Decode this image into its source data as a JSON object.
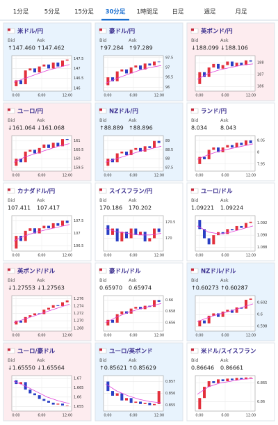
{
  "tabs": {
    "items": [
      "1分足",
      "5分足",
      "15分足",
      "30分足",
      "1時間足",
      "日足",
      "週足",
      "月足"
    ],
    "active": 3
  },
  "bid_label": "Bid",
  "ask_label": "Ask",
  "chart_x_labels": [
    "0:00",
    "6:00",
    "12:00"
  ],
  "tiles": [
    {
      "name": "米ドル/円",
      "trend": "up",
      "bid": "↑147.460",
      "ask": "↑147.462",
      "chart": {
        "ylim": [
          145.85,
          147.65
        ],
        "yticks": [
          147.5,
          147,
          146.5,
          146
        ],
        "open": 146.1,
        "closes": [
          146.4,
          146.2,
          146.9,
          147.0,
          146.8,
          147.1,
          147.2,
          147.0,
          147.3,
          147.1,
          147.4,
          147.45
        ],
        "ma": [
          146.3,
          146.5,
          146.7,
          146.9,
          147.05,
          147.2
        ]
      }
    },
    {
      "name": "豪ドル/円",
      "trend": "up",
      "bid": "↑97.284",
      "ask": "↑97.289",
      "chart": {
        "ylim": [
          95.8,
          97.6
        ],
        "yticks": [
          97.5,
          97,
          96.5,
          96
        ],
        "open": 96.1,
        "closes": [
          96.5,
          96.3,
          96.8,
          96.9,
          96.7,
          97.0,
          97.1,
          96.9,
          97.2,
          97.1,
          97.3,
          97.28
        ],
        "ma": [
          96.2,
          96.45,
          96.65,
          96.85,
          97.0,
          97.1
        ]
      }
    },
    {
      "name": "英ポンド/円",
      "trend": "down",
      "bid": "↓188.099",
      "ask": "↓188.106",
      "chart": {
        "ylim": [
          185.6,
          188.6
        ],
        "yticks": [
          188,
          187,
          186
        ],
        "open": 186.2,
        "closes": [
          187.2,
          186.8,
          187.6,
          187.9,
          187.5,
          187.8,
          188.1,
          187.7,
          188.0,
          187.8,
          188.2,
          188.1
        ],
        "ma": [
          186.6,
          187.1,
          187.4,
          187.6,
          187.8,
          187.9
        ]
      }
    },
    {
      "name": "ユーロ/円",
      "trend": "down",
      "bid": "↓161.064",
      "ask": "↓161.068",
      "chart": {
        "ylim": [
          159.3,
          161.3
        ],
        "yticks": [
          161,
          160.5,
          160,
          159.5
        ],
        "open": 159.6,
        "closes": [
          160.0,
          159.8,
          160.4,
          160.5,
          160.3,
          160.6,
          160.8,
          160.6,
          160.9,
          160.7,
          161.1,
          161.06
        ],
        "ma": [
          159.8,
          160.1,
          160.3,
          160.5,
          160.7,
          160.85
        ]
      }
    },
    {
      "name": "NZドル/円",
      "trend": "up",
      "bid": "↑88.889",
      "ask": "↑88.896",
      "chart": {
        "ylim": [
          87.3,
          89.3
        ],
        "yticks": [
          89,
          88.5,
          88,
          87.5
        ],
        "open": 87.6,
        "closes": [
          88.0,
          87.8,
          88.3,
          88.4,
          88.2,
          88.5,
          88.6,
          88.4,
          88.7,
          88.6,
          89.0,
          88.89
        ],
        "ma": [
          87.8,
          88.0,
          88.2,
          88.4,
          88.55,
          88.7
        ]
      }
    },
    {
      "name": "ランド/円",
      "trend": "none",
      "bid": "8.034",
      "ask": "8.043",
      "chart": {
        "ylim": [
          7.92,
          8.07
        ],
        "yticks": [
          8.05,
          8,
          7.95
        ],
        "open": 7.95,
        "closes": [
          7.98,
          7.97,
          8.01,
          8.02,
          8.0,
          8.02,
          8.03,
          8.02,
          8.04,
          8.03,
          8.05,
          8.038
        ],
        "ma": [
          7.97,
          7.99,
          8.005,
          8.015,
          8.025,
          8.035
        ]
      }
    },
    {
      "name": "カナダドル/円",
      "trend": "none",
      "bid": "107.411",
      "ask": "107.417",
      "chart": {
        "ylim": [
          106.3,
          107.7
        ],
        "yticks": [
          107.5,
          107,
          106.5
        ],
        "open": 106.4,
        "closes": [
          106.9,
          106.7,
          107.1,
          107.2,
          107.0,
          107.2,
          107.3,
          107.2,
          107.4,
          107.3,
          107.5,
          107.41
        ],
        "ma": [
          106.7,
          106.9,
          107.05,
          107.15,
          107.25,
          107.35
        ]
      }
    },
    {
      "name": "スイスフラン/円",
      "trend": "none",
      "bid": "170.186",
      "ask": "170.202",
      "chart": {
        "ylim": [
          169.6,
          170.7
        ],
        "yticks": [
          170.5,
          170
        ],
        "open": 170.4,
        "closes": [
          170.1,
          170.3,
          169.9,
          170.2,
          170.0,
          170.3,
          170.1,
          170.2,
          169.9,
          170.0,
          170.3,
          170.19
        ],
        "ma": [
          170.3,
          170.2,
          170.15,
          170.1,
          170.1,
          170.15
        ]
      }
    },
    {
      "name": "ユーロ/ドル",
      "trend": "none",
      "bid": "1.09221",
      "ask": "1.09224",
      "chart": {
        "ylim": [
          1.0874,
          1.0932
        ],
        "yticks": [
          1.092,
          {
            "value": 1.09,
            "label": "1.090"
          },
          1.088
        ],
        "open": 1.0925,
        "closes": [
          1.091,
          1.0895,
          1.0885,
          1.09,
          1.0905,
          1.0902,
          1.091,
          1.0908,
          1.0915,
          1.0912,
          1.092,
          1.0922
        ],
        "ma": [
          1.0915,
          1.0905,
          1.0902,
          1.0905,
          1.091,
          1.0915
        ]
      }
    },
    {
      "name": "英ポンド/ドル",
      "trend": "down",
      "bid": "↓1.27553",
      "ask": "↓1.27563",
      "chart": {
        "ylim": [
          1.2672,
          1.2768
        ],
        "yticks": [
          1.276,
          1.274,
          1.272,
          {
            "value": 1.27,
            "label": "1.270"
          },
          1.268
        ],
        "open": 1.269,
        "closes": [
          1.27,
          1.2695,
          1.271,
          1.2715,
          1.272,
          1.2718,
          1.273,
          1.2735,
          1.2742,
          1.274,
          1.275,
          1.2755
        ],
        "ma": [
          1.2695,
          1.2705,
          1.2715,
          1.2725,
          1.2735,
          1.2745
        ]
      }
    },
    {
      "name": "豪ドル/ドル",
      "trend": "none",
      "bid": "0.65970",
      "ask": "0.65974",
      "chart": {
        "ylim": [
          0.6545,
          0.6608
        ],
        "yticks": [
          0.66,
          0.658,
          0.656
        ],
        "open": 0.6555,
        "closes": [
          0.6565,
          0.656,
          0.6575,
          0.658,
          0.6576,
          0.6585,
          0.6588,
          0.6584,
          0.659,
          0.6588,
          0.66,
          0.6597
        ],
        "ma": [
          0.656,
          0.657,
          0.6578,
          0.6584,
          0.6589,
          0.6594
        ]
      }
    },
    {
      "name": "NZドル/ドル",
      "trend": "up",
      "bid": "↑0.60273",
      "ask": "↑0.60287",
      "chart": {
        "ylim": [
          0.5972,
          0.6032
        ],
        "yticks": [
          0.602,
          0.6,
          0.598
        ],
        "open": 0.598,
        "closes": [
          0.599,
          0.5985,
          0.5998,
          0.6002,
          0.5996,
          0.6005,
          0.6008,
          0.6003,
          0.6012,
          0.601,
          0.6025,
          0.6027
        ],
        "ma": [
          0.5988,
          0.5995,
          0.6001,
          0.6006,
          0.6012,
          0.6018
        ]
      }
    },
    {
      "name": "ユーロ/豪ドル",
      "trend": "down",
      "bid": "↓1.65550",
      "ask": "↓1.65564",
      "chart": {
        "ylim": [
          1.6525,
          1.6715
        ],
        "yticks": [
          1.67,
          1.665,
          1.66,
          1.655
        ],
        "open": 1.669,
        "closes": [
          1.667,
          1.668,
          1.664,
          1.662,
          1.661,
          1.659,
          1.658,
          1.657,
          1.656,
          1.6565,
          1.6555,
          1.6555
        ],
        "ma": [
          1.6685,
          1.666,
          1.663,
          1.66,
          1.658,
          1.6565
        ]
      }
    },
    {
      "name": "ユーロ/英ポンド",
      "trend": "up",
      "bid": "↑0.85621",
      "ask": "↑0.85629",
      "chart": {
        "ylim": [
          0.8545,
          0.8575
        ],
        "yticks": [
          0.857,
          0.856,
          0.855
        ],
        "open": 0.857,
        "closes": [
          0.8562,
          0.8558,
          0.856,
          0.8554,
          0.8556,
          0.8552,
          0.8553,
          0.8551,
          0.8552,
          0.855,
          0.8551,
          0.8562
        ],
        "ma": [
          0.8568,
          0.8562,
          0.8558,
          0.8555,
          0.8553,
          0.8552
        ]
      }
    },
    {
      "name": "米ドル/スイスフラン",
      "trend": "none",
      "bid": "0.86646",
      "ask": "0.86661",
      "chart": {
        "ylim": [
          0.8575,
          0.867
        ],
        "yticks": [
          0.865,
          0.86
        ],
        "open": 0.858,
        "closes": [
          0.861,
          0.864,
          0.8655,
          0.865,
          0.866,
          0.8655,
          0.8662,
          0.8658,
          0.8664,
          0.866,
          0.8665,
          0.8665
        ],
        "ma": [
          0.862,
          0.864,
          0.865,
          0.8655,
          0.866,
          0.8662
        ]
      }
    }
  ]
}
